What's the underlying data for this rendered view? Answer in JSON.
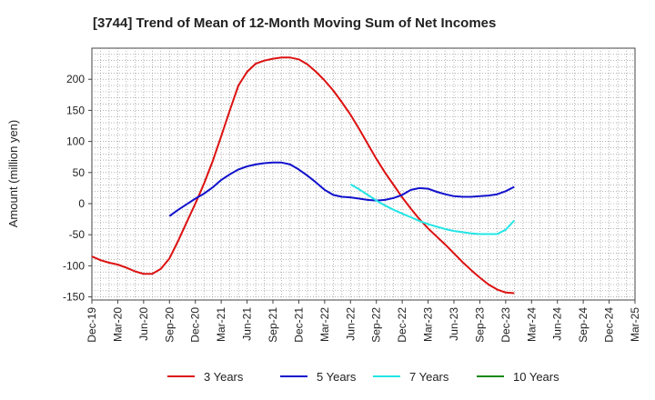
{
  "chart_data": {
    "type": "line",
    "title": "[3744]  Trend of Mean of 12-Month Moving Sum of Net Incomes",
    "ylabel": "Amount (million yen)",
    "xlabel": "",
    "ylim": [
      -155,
      250
    ],
    "yticks": [
      -150,
      -100,
      -50,
      0,
      50,
      100,
      150,
      200
    ],
    "xticks": [
      "Dec-19",
      "Mar-20",
      "Jun-20",
      "Sep-20",
      "Dec-20",
      "Mar-21",
      "Jun-21",
      "Sep-21",
      "Dec-21",
      "Mar-22",
      "Jun-22",
      "Sep-22",
      "Dec-22",
      "Mar-23",
      "Jun-23",
      "Sep-23",
      "Dec-23",
      "Mar-24",
      "Jun-24",
      "Sep-24",
      "Dec-24",
      "Mar-25"
    ],
    "grid": true,
    "legend_position": "bottom",
    "series": [
      {
        "name": "3 Years",
        "color": "#dd1111",
        "points": [
          [
            0,
            -85
          ],
          [
            1,
            -91
          ],
          [
            2,
            -95
          ],
          [
            3,
            -98
          ],
          [
            4,
            -103
          ],
          [
            5,
            -109
          ],
          [
            6,
            -113
          ],
          [
            7,
            -113
          ],
          [
            8,
            -105
          ],
          [
            9,
            -88
          ],
          [
            10,
            -60
          ],
          [
            11,
            -30
          ],
          [
            12,
            0
          ],
          [
            13,
            32
          ],
          [
            14,
            68
          ],
          [
            15,
            108
          ],
          [
            16,
            150
          ],
          [
            17,
            190
          ],
          [
            18,
            212
          ],
          [
            19,
            225
          ],
          [
            20,
            230
          ],
          [
            21,
            233
          ],
          [
            22,
            235
          ],
          [
            23,
            235
          ],
          [
            24,
            232
          ],
          [
            25,
            224
          ],
          [
            26,
            212
          ],
          [
            27,
            198
          ],
          [
            28,
            182
          ],
          [
            29,
            163
          ],
          [
            30,
            143
          ],
          [
            31,
            120
          ],
          [
            32,
            96
          ],
          [
            33,
            72
          ],
          [
            34,
            50
          ],
          [
            35,
            30
          ],
          [
            36,
            10
          ],
          [
            37,
            -8
          ],
          [
            38,
            -25
          ],
          [
            39,
            -40
          ],
          [
            40,
            -53
          ],
          [
            41,
            -66
          ],
          [
            42,
            -80
          ],
          [
            43,
            -94
          ],
          [
            44,
            -107
          ],
          [
            45,
            -119
          ],
          [
            46,
            -130
          ],
          [
            47,
            -138
          ],
          [
            48,
            -143
          ],
          [
            49,
            -144
          ]
        ]
      },
      {
        "name": "5 Years",
        "color": "#1111cc",
        "points": [
          [
            9,
            -20
          ],
          [
            10,
            -10
          ],
          [
            11,
            -1
          ],
          [
            12,
            8
          ],
          [
            13,
            16
          ],
          [
            14,
            26
          ],
          [
            15,
            38
          ],
          [
            16,
            47
          ],
          [
            17,
            55
          ],
          [
            18,
            60
          ],
          [
            19,
            63
          ],
          [
            20,
            65
          ],
          [
            21,
            66
          ],
          [
            22,
            66
          ],
          [
            23,
            63
          ],
          [
            24,
            55
          ],
          [
            25,
            45
          ],
          [
            26,
            34
          ],
          [
            27,
            22
          ],
          [
            28,
            14
          ],
          [
            29,
            11
          ],
          [
            30,
            10
          ],
          [
            31,
            8
          ],
          [
            32,
            6
          ],
          [
            33,
            5
          ],
          [
            34,
            6
          ],
          [
            35,
            9
          ],
          [
            36,
            14
          ],
          [
            37,
            22
          ],
          [
            38,
            25
          ],
          [
            39,
            24
          ],
          [
            40,
            19
          ],
          [
            41,
            15
          ],
          [
            42,
            12
          ],
          [
            43,
            11
          ],
          [
            44,
            11
          ],
          [
            45,
            12
          ],
          [
            46,
            13
          ],
          [
            47,
            15
          ],
          [
            48,
            20
          ],
          [
            49,
            27
          ]
        ]
      },
      {
        "name": "7 Years",
        "color": "#22e5e5",
        "points": [
          [
            30,
            31
          ],
          [
            31,
            23
          ],
          [
            32,
            14
          ],
          [
            33,
            5
          ],
          [
            34,
            -3
          ],
          [
            35,
            -10
          ],
          [
            36,
            -16
          ],
          [
            37,
            -22
          ],
          [
            38,
            -28
          ],
          [
            39,
            -33
          ],
          [
            40,
            -37
          ],
          [
            41,
            -41
          ],
          [
            42,
            -44
          ],
          [
            43,
            -46
          ],
          [
            44,
            -48
          ],
          [
            45,
            -49
          ],
          [
            46,
            -49
          ],
          [
            47,
            -49
          ],
          [
            48,
            -42
          ],
          [
            49,
            -27
          ]
        ]
      },
      {
        "name": "10 Years",
        "color": "#118811",
        "points": []
      }
    ]
  }
}
